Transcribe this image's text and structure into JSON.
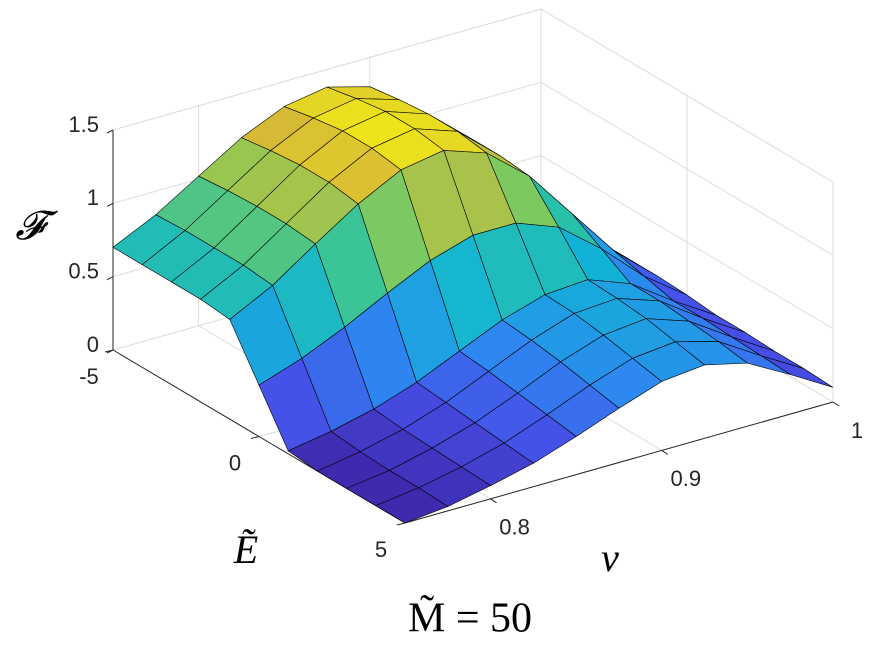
{
  "chart_data": {
    "type": "surface",
    "title": "M̃ = 50",
    "xlabel": "Ẽ",
    "ylabel": "v",
    "zlabel": "𝓕",
    "x": [
      -5,
      -4,
      -3,
      -2,
      -1,
      0,
      1,
      2,
      3,
      4,
      5
    ],
    "y": [
      0.75,
      0.775,
      0.8,
      0.825,
      0.85,
      0.875,
      0.9,
      0.925,
      0.95,
      0.975,
      1
    ],
    "z": [
      [
        0.7,
        0.84,
        1.02,
        1.2,
        1.33,
        1.38,
        1.3,
        1.06,
        0.73,
        0.4,
        0.15
      ],
      [
        0.7,
        0.85,
        1.04,
        1.23,
        1.37,
        1.42,
        1.33,
        1.08,
        0.74,
        0.4,
        0.15
      ],
      [
        0.7,
        0.85,
        1.05,
        1.25,
        1.4,
        1.45,
        1.35,
        1.1,
        0.75,
        0.4,
        0.15
      ],
      [
        0.7,
        0.85,
        1.05,
        1.25,
        1.4,
        1.45,
        1.35,
        1.1,
        0.75,
        0.4,
        0.15
      ],
      [
        0.68,
        0.83,
        1.03,
        1.22,
        1.37,
        1.42,
        1.32,
        1.08,
        0.74,
        0.4,
        0.15
      ],
      [
        0.35,
        0.45,
        0.58,
        0.73,
        0.87,
        0.96,
        0.96,
        0.85,
        0.62,
        0.35,
        0.14
      ],
      [
        0.02,
        0.07,
        0.14,
        0.24,
        0.37,
        0.5,
        0.59,
        0.61,
        0.5,
        0.3,
        0.12
      ],
      [
        0.0,
        0.05,
        0.12,
        0.22,
        0.35,
        0.48,
        0.58,
        0.6,
        0.5,
        0.3,
        0.12
      ],
      [
        0.0,
        0.04,
        0.11,
        0.2,
        0.32,
        0.45,
        0.55,
        0.58,
        0.48,
        0.29,
        0.11
      ],
      [
        0.0,
        0.04,
        0.1,
        0.18,
        0.29,
        0.41,
        0.51,
        0.54,
        0.46,
        0.28,
        0.11
      ],
      [
        0.0,
        0.03,
        0.09,
        0.16,
        0.26,
        0.37,
        0.47,
        0.5,
        0.43,
        0.27,
        0.1
      ]
    ],
    "xlim": [
      -5,
      5
    ],
    "ylim": [
      0.75,
      1
    ],
    "zlim": [
      0,
      1.5
    ],
    "xticks": [
      -5,
      0,
      5
    ],
    "yticks": [
      0.8,
      0.9,
      1
    ],
    "zticks": [
      0,
      0.5,
      1,
      1.5
    ],
    "grid": true,
    "colormap": [
      "#3e26a8",
      "#4650e8",
      "#2e87f0",
      "#12b2d8",
      "#2dc3a0",
      "#86c95a",
      "#d7ba35",
      "#f9fb0e"
    ],
    "edge_color": "#000000"
  }
}
